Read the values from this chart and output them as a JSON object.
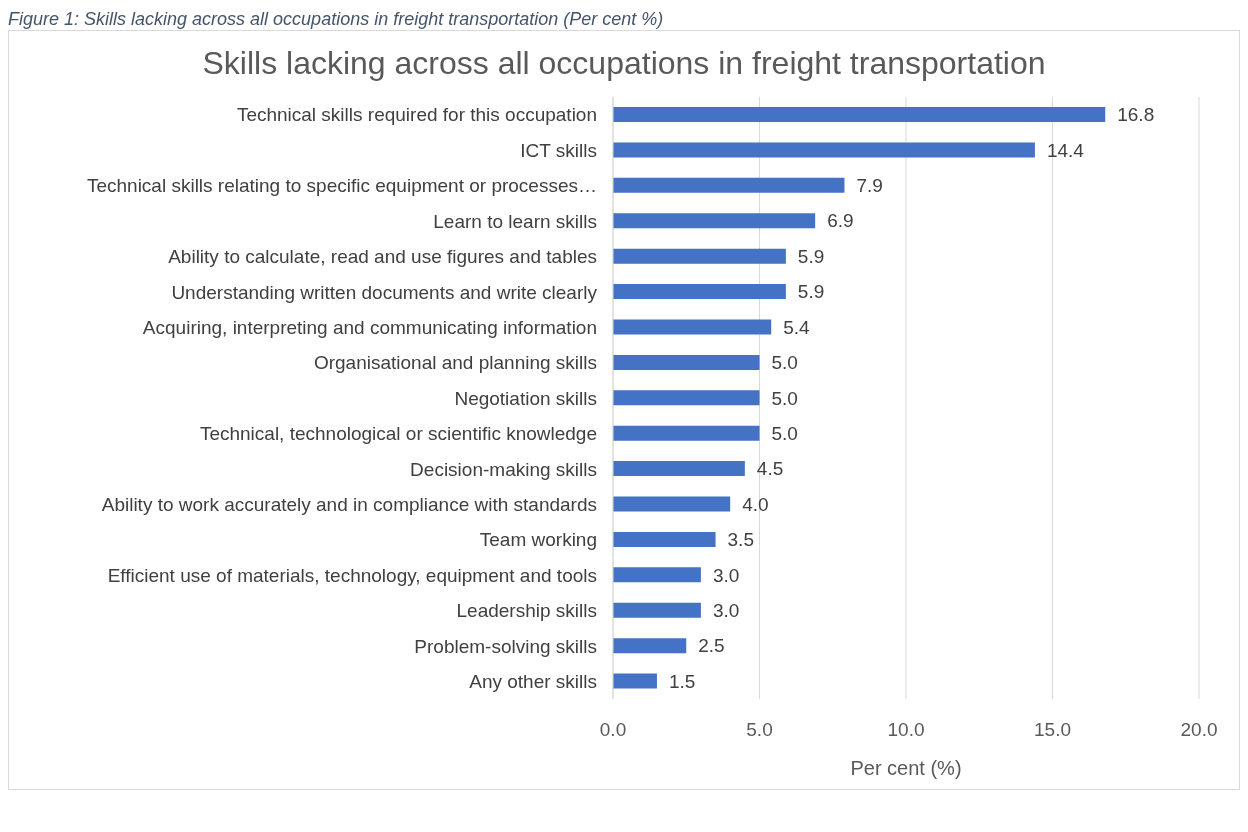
{
  "chart_data": {
    "type": "bar",
    "orientation": "horizontal",
    "title": "Skills lacking across all occupations in freight transportation",
    "annotations": [
      "Figure 1: Skills lacking across all occupations in freight transportation (Per cent %)"
    ],
    "xlabel": "Per cent (%)",
    "categories": [
      "Technical skills required for this occupation",
      "ICT skills",
      "Technical skills relating to specific equipment or processes…",
      "Learn to learn skills",
      "Ability to calculate, read and use figures and tables",
      "Understanding written documents and write clearly",
      "Acquiring, interpreting and communicating information",
      "Organisational and planning skills",
      "Negotiation skills",
      "Technical, technological or scientific knowledge",
      "Decision-making skills",
      "Ability to work accurately and in compliance with standards",
      "Team working",
      "Efficient use of materials, technology, equipment and tools",
      "Leadership skills",
      "Problem-solving skills",
      "Any other skills"
    ],
    "values": [
      16.8,
      14.4,
      7.9,
      6.9,
      5.9,
      5.9,
      5.4,
      5.0,
      5.0,
      5.0,
      4.5,
      4.0,
      3.5,
      3.0,
      3.0,
      2.5,
      1.5
    ],
    "value_labels": [
      "16.8",
      "14.4",
      "7.9",
      "6.9",
      "5.9",
      "5.9",
      "5.4",
      "5.0",
      "5.0",
      "5.0",
      "4.5",
      "4.0",
      "3.5",
      "3.0",
      "3.0",
      "2.5",
      "1.5"
    ],
    "color": "#4472c4",
    "xlim": [
      0,
      20
    ],
    "xticks": [
      {
        "value": 0,
        "label": "0.0"
      },
      {
        "value": 5,
        "label": "5.0"
      },
      {
        "value": 10,
        "label": "10.0"
      },
      {
        "value": 15,
        "label": "15.0"
      },
      {
        "value": 20,
        "label": "20.0"
      }
    ],
    "grid": "x"
  }
}
